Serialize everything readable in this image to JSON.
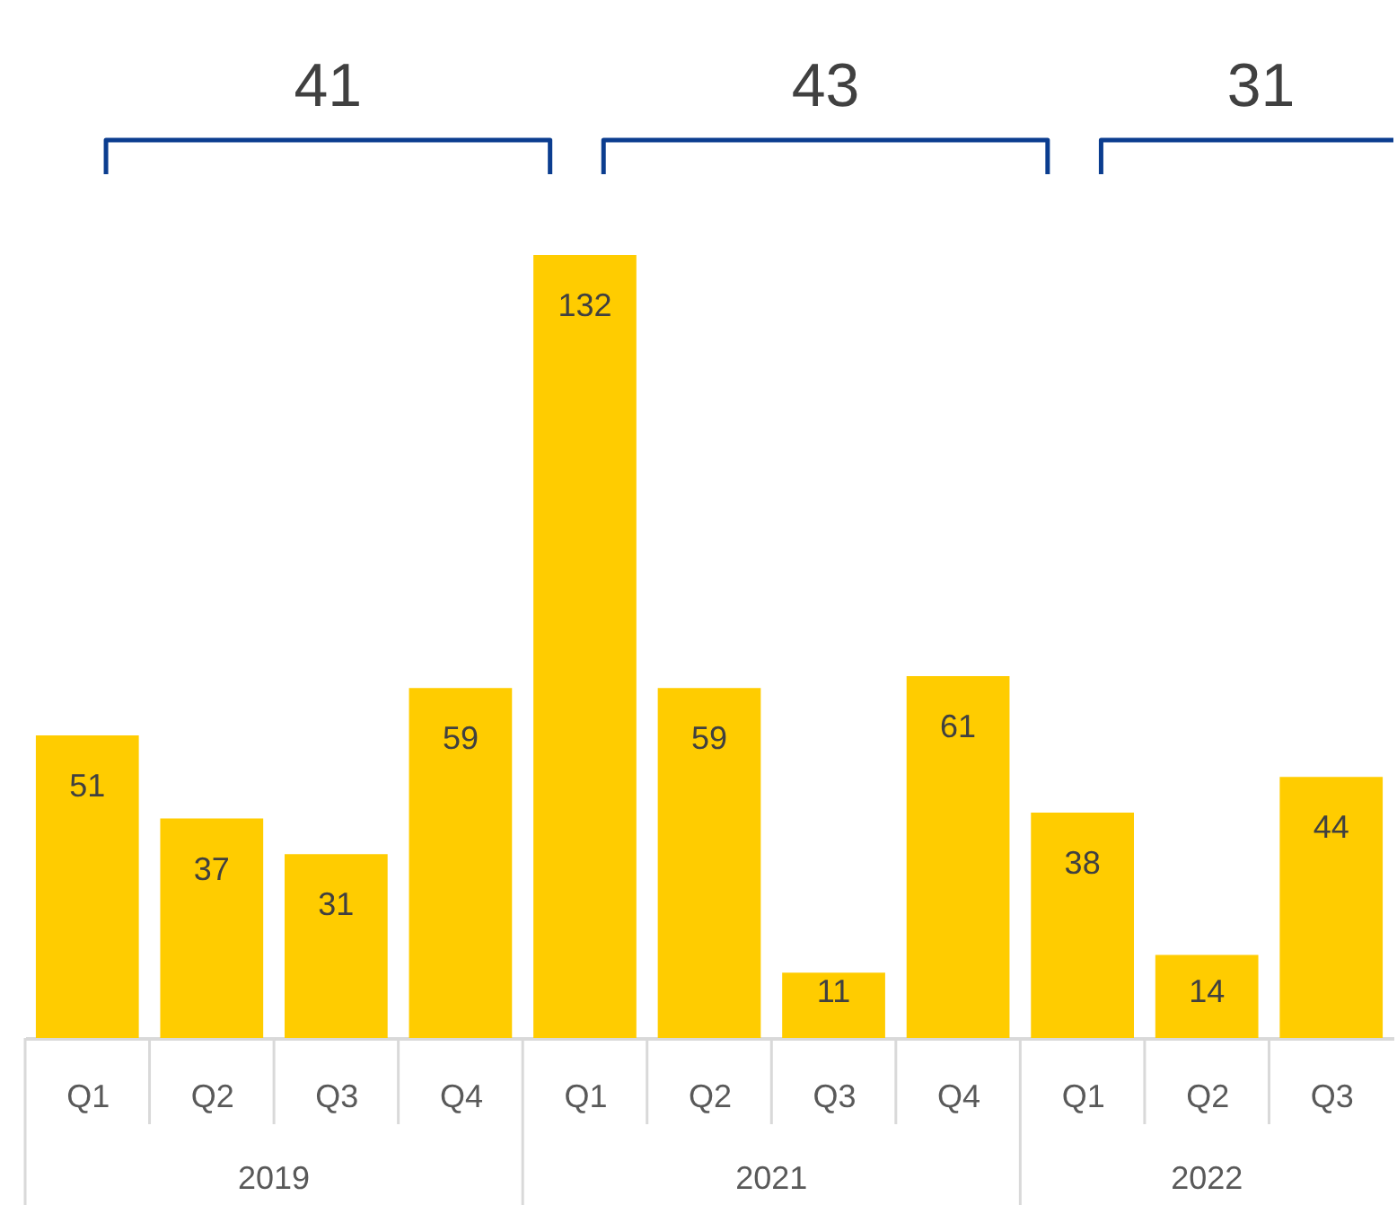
{
  "chart_data": {
    "type": "bar",
    "categories": [
      "Q1",
      "Q2",
      "Q3",
      "Q4",
      "Q1",
      "Q2",
      "Q3",
      "Q4",
      "Q1",
      "Q2",
      "Q3"
    ],
    "values": [
      51,
      37,
      31,
      59,
      132,
      59,
      11,
      61,
      38,
      14,
      44
    ],
    "color": "#ffcc00",
    "data_labels": true,
    "annotations": [
      "41",
      "43",
      "31",
      "2019",
      "2021",
      "2022"
    ]
  }
}
